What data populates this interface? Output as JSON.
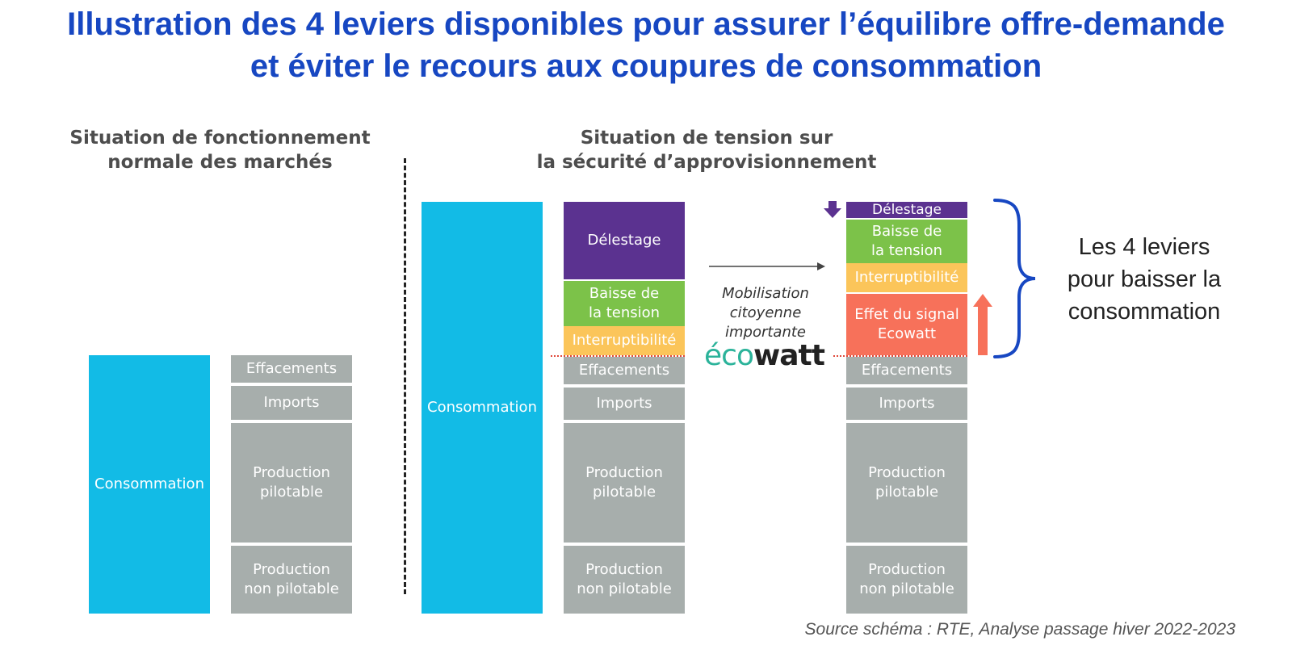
{
  "title": {
    "line1": "Illustration des 4 leviers disponibles pour assurer l’équilibre offre-demande",
    "line2": "et éviter le recours aux coupures de consommation"
  },
  "left_panel": {
    "heading": [
      "Situation de fonctionnement",
      "normale des marchés"
    ],
    "consumption": "Consommation",
    "supply": [
      "Effacements",
      "Imports",
      "Production pilotable",
      "Production non pilotable"
    ]
  },
  "right_panel": {
    "heading": [
      "Situation de tension sur",
      "la sécurité d’approvisionnement"
    ],
    "consumption": "Consommation",
    "middle_stack": [
      "Délestage",
      "Baisse de la tension",
      "Interruptibilité",
      "Effacements",
      "Imports",
      "Production pilotable",
      "Production non pilotable"
    ],
    "mobilisation": [
      "Mobilisation",
      "citoyenne",
      "importante"
    ],
    "ecowatt_logo": {
      "part1": "éco",
      "part2": "watt"
    },
    "final_stack": [
      "Délestage",
      "Baisse de la tension",
      "Interruptibilité",
      "Effet du signal Ecowatt",
      "Effacements",
      "Imports",
      "Production pilotable",
      "Production non pilotable"
    ]
  },
  "levers_label": [
    "Les 4 leviers",
    "pour baisser la",
    "consommation"
  ],
  "source": "Source schéma : RTE, Analyse passage hiver 2022-2023",
  "colors": {
    "title": "#1747c2",
    "consumption": "#12bbe6",
    "grey": "#a7aeac",
    "delestage": "#5b3290",
    "tension": "#7cc249",
    "interruptibilite": "#fbc55a",
    "ecowatt_effect": "#f7715a",
    "brace": "#1747c2"
  }
}
